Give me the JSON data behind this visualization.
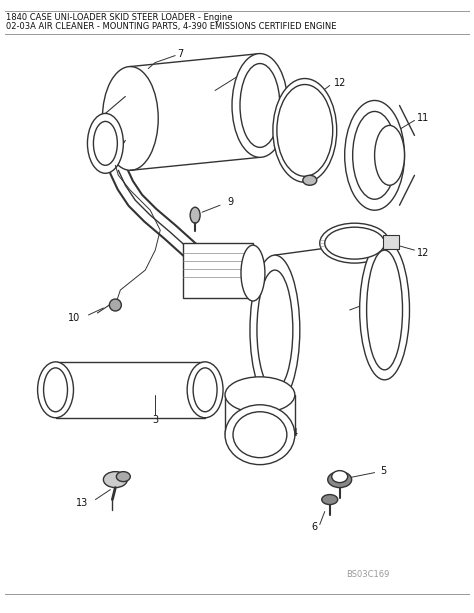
{
  "title_line1": "1840 CASE UNI-LOADER SKID STEER LOADER - Engine",
  "title_line2": "02-03A AIR CLEANER - MOUNTING PARTS, 4-390 EMISSIONS CERTIFIED ENGINE",
  "bg_color": "#ffffff",
  "ec": "#333333",
  "text_color": "#111111",
  "watermark": "BS03C169",
  "lw": 1.0
}
